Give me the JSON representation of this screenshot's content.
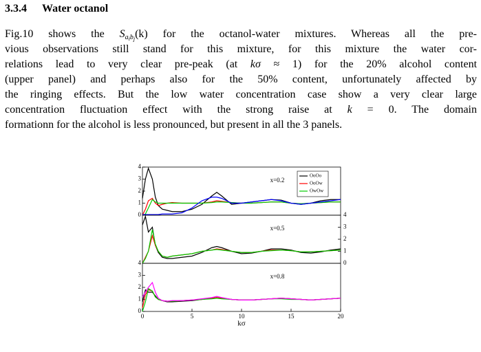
{
  "section": {
    "number": "3.3.4",
    "title": "Water octanol"
  },
  "paragraph": [
    [
      "Fig.10 shows the ",
      "S",
      "a",
      "i",
      "b",
      "j",
      "(k)",
      " for the octanol-water mixtures. Whereas all the pre-"
    ],
    [
      "vious observations still stand for this mixture, for this mixture the water cor-"
    ],
    [
      "relations lead to very clear pre-peak (at ",
      "kσ",
      " ≈ 1) for the 20% alcohol content"
    ],
    [
      "(upper panel) and perhaps also for the 50% content, unfortunately affected by"
    ],
    [
      "the ringing effects. But the low water concentration case show a very clear large"
    ],
    [
      "concentration fluctuation effect with the strong raise at ",
      "k",
      " = 0.  The domain"
    ],
    [
      "formationn for the alcohol is less pronounced, but present in all the 3 panels."
    ]
  ],
  "chart_data": [
    {
      "type": "line",
      "annotation": "x=0.2",
      "yaxis_side": "left",
      "legend": "upper right",
      "x": [
        0,
        0.3,
        0.6,
        1,
        1.3,
        1.6,
        2,
        2.5,
        3,
        4,
        5,
        6,
        7,
        7.5,
        8,
        9,
        10,
        11,
        12,
        13,
        14,
        15,
        16,
        17,
        18,
        19,
        20
      ],
      "xlim": [
        0,
        20
      ],
      "ylim": [
        0,
        4
      ],
      "yticks": [
        0,
        1,
        2,
        3,
        4
      ],
      "series": [
        {
          "name": "OoOo",
          "color": "#000000",
          "values": [
            1.4,
            3.0,
            3.9,
            3.0,
            1.5,
            0.8,
            0.5,
            0.4,
            0.3,
            0.3,
            0.5,
            0.9,
            1.6,
            1.9,
            1.6,
            0.9,
            1.0,
            1.1,
            1.2,
            1.3,
            1.25,
            1.0,
            0.9,
            1.0,
            1.2,
            1.3,
            1.3
          ]
        },
        {
          "name": "OoOw",
          "color": "#ff0000",
          "values": [
            0,
            0.5,
            1.2,
            1.4,
            1.0,
            0.8,
            0.9,
            1.0,
            1.05,
            1.0,
            1.0,
            1.0,
            1.1,
            1.2,
            1.15,
            1.05,
            1.0,
            1.0,
            1.05,
            1.1,
            1.1,
            1.0,
            0.95,
            1.0,
            1.05,
            1.1,
            1.1
          ]
        },
        {
          "name": "OwOw",
          "color": "#00cc00",
          "values": [
            0,
            0.1,
            0.6,
            1.3,
            1.1,
            1.0,
            1.0,
            1.0,
            1.0,
            1.0,
            1.0,
            1.0,
            1.05,
            1.1,
            1.1,
            1.05,
            1.0,
            1.0,
            1.05,
            1.1,
            1.1,
            1.0,
            0.95,
            1.0,
            1.05,
            1.1,
            1.1
          ]
        },
        {
          "color": "#0000ff",
          "values": [
            0.05,
            0.05,
            0.05,
            0.05,
            0.05,
            0.05,
            0.1,
            0.1,
            0.1,
            0.2,
            0.6,
            1.2,
            1.5,
            1.5,
            1.4,
            1.0,
            1.0,
            1.1,
            1.2,
            1.3,
            1.2,
            1.0,
            0.9,
            1.0,
            1.1,
            1.2,
            1.3
          ]
        }
      ]
    },
    {
      "type": "line",
      "annotation": "x=0.5",
      "yaxis_side": "right",
      "x": [
        0,
        0.3,
        0.6,
        1,
        1.3,
        1.6,
        2,
        2.5,
        3,
        4,
        5,
        6,
        7,
        7.5,
        8,
        9,
        10,
        11,
        12,
        13,
        14,
        15,
        16,
        17,
        18,
        19,
        20
      ],
      "xlim": [
        0,
        20
      ],
      "ylim": [
        0,
        4
      ],
      "yticks": [
        0,
        1,
        2,
        3,
        4
      ],
      "series": [
        {
          "color": "#000000",
          "values": [
            3.2,
            3.9,
            2.6,
            3.0,
            1.5,
            0.9,
            0.5,
            0.4,
            0.4,
            0.5,
            0.6,
            0.9,
            1.3,
            1.4,
            1.3,
            1.0,
            0.8,
            0.85,
            1.0,
            1.2,
            1.2,
            1.1,
            0.9,
            0.85,
            0.95,
            1.1,
            1.2
          ]
        },
        {
          "color": "#ff0000",
          "values": [
            0,
            0.5,
            1.0,
            2.3,
            1.5,
            1.0,
            0.6,
            0.5,
            0.6,
            0.7,
            0.8,
            1.0,
            1.1,
            1.2,
            1.15,
            1.0,
            0.9,
            0.9,
            1.0,
            1.1,
            1.1,
            1.05,
            0.95,
            0.95,
            1.0,
            1.05,
            1.1
          ]
        },
        {
          "color": "#00cc00",
          "values": [
            0,
            0.4,
            1.0,
            2.8,
            1.6,
            1.0,
            0.6,
            0.5,
            0.6,
            0.7,
            0.8,
            1.0,
            1.1,
            1.15,
            1.1,
            1.0,
            0.9,
            0.9,
            1.0,
            1.05,
            1.1,
            1.05,
            0.95,
            0.95,
            1.0,
            1.05,
            1.1
          ]
        }
      ]
    },
    {
      "type": "line",
      "annotation": "x=0.8",
      "yaxis_side": "left",
      "xlabel": "kσ",
      "x": [
        0,
        0.3,
        0.6,
        1,
        1.3,
        1.6,
        2,
        2.5,
        3,
        4,
        5,
        6,
        7,
        7.5,
        8,
        9,
        10,
        11,
        12,
        13,
        14,
        15,
        16,
        17,
        18,
        19,
        20
      ],
      "xlim": [
        0,
        20
      ],
      "ylim": [
        0,
        4
      ],
      "yticks": [
        0,
        1,
        2,
        3,
        4
      ],
      "xticks": [
        0,
        5,
        10,
        15,
        20
      ],
      "series": [
        {
          "color": "#000000",
          "values": [
            0.8,
            1.8,
            1.6,
            1.6,
            1.3,
            1.0,
            0.9,
            0.8,
            0.8,
            0.85,
            0.9,
            1.0,
            1.1,
            1.15,
            1.1,
            1.0,
            0.95,
            0.95,
            1.0,
            1.05,
            1.1,
            1.05,
            1.0,
            0.95,
            1.0,
            1.05,
            1.1
          ]
        },
        {
          "color": "#ff0000",
          "values": [
            0.3,
            1.4,
            1.8,
            1.7,
            1.2,
            1.0,
            0.9,
            0.85,
            0.85,
            0.9,
            0.95,
            1.0,
            1.1,
            1.15,
            1.1,
            1.0,
            0.95,
            0.95,
            1.0,
            1.05,
            1.1,
            1.05,
            1.0,
            0.95,
            1.0,
            1.05,
            1.1
          ]
        },
        {
          "color": "#00cc00",
          "values": [
            0,
            0.8,
            1.9,
            1.7,
            1.2,
            1.0,
            0.9,
            0.85,
            0.85,
            0.9,
            0.95,
            1.0,
            1.05,
            1.1,
            1.05,
            1.0,
            0.95,
            0.95,
            1.0,
            1.05,
            1.05,
            1.0,
            1.0,
            0.95,
            1.0,
            1.05,
            1.1
          ]
        },
        {
          "color": "#ff00ff",
          "values": [
            1.2,
            1.6,
            2.0,
            2.4,
            1.6,
            1.1,
            0.9,
            0.85,
            0.9,
            0.9,
            0.95,
            1.05,
            1.15,
            1.25,
            1.15,
            1.0,
            0.95,
            0.95,
            1.0,
            1.05,
            1.1,
            1.05,
            1.0,
            0.95,
            1.0,
            1.05,
            1.1
          ]
        }
      ]
    }
  ]
}
